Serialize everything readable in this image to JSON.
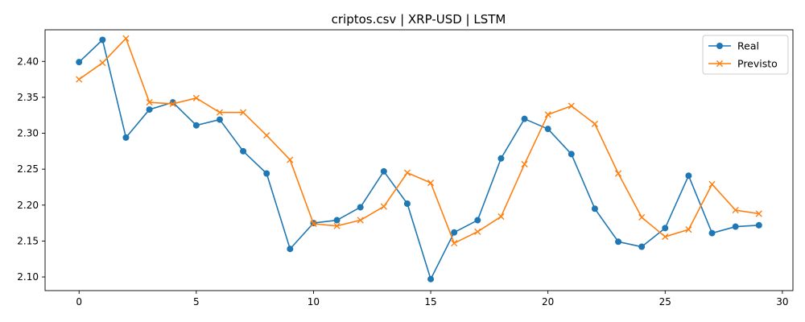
{
  "chart_data": {
    "type": "line",
    "title": "criptos.csv | XRP-USD | LSTM",
    "xlabel": "",
    "ylabel": "",
    "xlim": [
      -1.45,
      30.45
    ],
    "ylim": [
      2.081,
      2.444
    ],
    "x_ticks": [
      0,
      5,
      10,
      15,
      20,
      25,
      30
    ],
    "x_tick_labels": [
      "0",
      "5",
      "10",
      "15",
      "20",
      "25",
      "30"
    ],
    "y_ticks": [
      2.1,
      2.15,
      2.2,
      2.25,
      2.3,
      2.35,
      2.4
    ],
    "y_tick_labels": [
      "2.10",
      "2.15",
      "2.20",
      "2.25",
      "2.30",
      "2.35",
      "2.40"
    ],
    "grid": false,
    "legend_position": "top-right",
    "x": [
      0,
      1,
      2,
      3,
      4,
      5,
      6,
      7,
      8,
      9,
      10,
      11,
      12,
      13,
      14,
      15,
      16,
      17,
      18,
      19,
      20,
      21,
      22,
      23,
      24,
      25,
      26,
      27,
      28,
      29
    ],
    "series": [
      {
        "name": "Real",
        "color": "#1f77b4",
        "marker": "circle",
        "values": [
          2.399,
          2.43,
          2.294,
          2.333,
          2.343,
          2.311,
          2.319,
          2.275,
          2.244,
          2.139,
          2.175,
          2.179,
          2.197,
          2.247,
          2.202,
          2.097,
          2.162,
          2.179,
          2.265,
          2.32,
          2.306,
          2.271,
          2.195,
          2.149,
          2.142,
          2.168,
          2.241,
          2.161,
          2.17,
          2.172
        ]
      },
      {
        "name": "Previsto",
        "color": "#ff7f0e",
        "marker": "x",
        "values": [
          2.375,
          2.398,
          2.432,
          2.343,
          2.341,
          2.349,
          2.329,
          2.329,
          2.297,
          2.263,
          2.174,
          2.171,
          2.179,
          2.198,
          2.245,
          2.231,
          2.147,
          2.163,
          2.184,
          2.257,
          2.326,
          2.338,
          2.313,
          2.244,
          2.183,
          2.156,
          2.166,
          2.229,
          2.193,
          2.188
        ]
      }
    ]
  }
}
